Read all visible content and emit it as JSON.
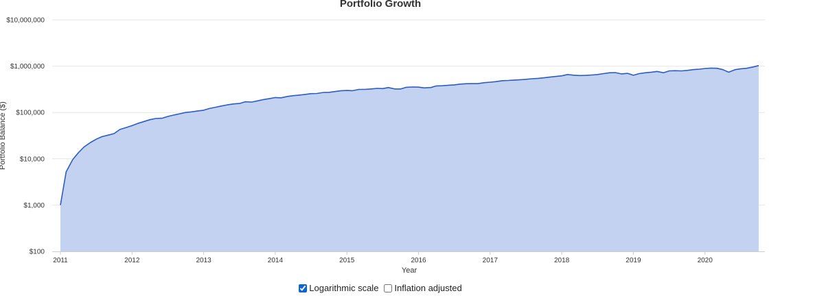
{
  "chart_data": {
    "type": "area",
    "title": "Portfolio Growth",
    "xlabel": "Year",
    "ylabel": "Portfolio Balance ($)",
    "y_scale": "log",
    "ylim": [
      100,
      10000000
    ],
    "xlim": [
      2011.0,
      2020.75
    ],
    "y_ticks": [
      {
        "value": 100,
        "label": "$100"
      },
      {
        "value": 1000,
        "label": "$1,000"
      },
      {
        "value": 10000,
        "label": "$10,000"
      },
      {
        "value": 100000,
        "label": "$100,000"
      },
      {
        "value": 1000000,
        "label": "$1,000,000"
      },
      {
        "value": 10000000,
        "label": "$10,000,000"
      }
    ],
    "x_ticks": [
      {
        "value": 2011,
        "label": "2011"
      },
      {
        "value": 2012,
        "label": "2012"
      },
      {
        "value": 2013,
        "label": "2013"
      },
      {
        "value": 2014,
        "label": "2014"
      },
      {
        "value": 2015,
        "label": "2015"
      },
      {
        "value": 2016,
        "label": "2016"
      },
      {
        "value": 2017,
        "label": "2017"
      },
      {
        "value": 2018,
        "label": "2018"
      },
      {
        "value": 2019,
        "label": "2019"
      },
      {
        "value": 2020,
        "label": "2020"
      }
    ],
    "grid": true,
    "legend": "none",
    "line_color": "#2a5cc4",
    "fill_color": "#c2d2f0",
    "series": [
      {
        "x": [
          2011.0,
          2011.08,
          2011.17,
          2011.25,
          2011.33,
          2011.42,
          2011.5,
          2011.58,
          2011.67,
          2011.75,
          2011.83,
          2011.92,
          2012.0,
          2012.08,
          2012.17,
          2012.25,
          2012.33,
          2012.42,
          2012.5,
          2012.58,
          2012.67,
          2012.75,
          2012.83,
          2012.92,
          2013.0,
          2013.08,
          2013.17,
          2013.25,
          2013.33,
          2013.42,
          2013.5,
          2013.58,
          2013.67,
          2013.75,
          2013.83,
          2013.92,
          2014.0,
          2014.08,
          2014.17,
          2014.25,
          2014.33,
          2014.42,
          2014.5,
          2014.58,
          2014.67,
          2014.75,
          2014.83,
          2014.92,
          2015.0,
          2015.08,
          2015.17,
          2015.25,
          2015.33,
          2015.42,
          2015.5,
          2015.58,
          2015.67,
          2015.75,
          2015.83,
          2015.92,
          2016.0,
          2016.08,
          2016.17,
          2016.25,
          2016.33,
          2016.42,
          2016.5,
          2016.58,
          2016.67,
          2016.75,
          2016.83,
          2016.92,
          2017.0,
          2017.08,
          2017.17,
          2017.25,
          2017.33,
          2017.42,
          2017.5,
          2017.58,
          2017.67,
          2017.75,
          2017.83,
          2017.92,
          2018.0,
          2018.08,
          2018.17,
          2018.25,
          2018.33,
          2018.42,
          2018.5,
          2018.58,
          2018.67,
          2018.75,
          2018.83,
          2018.92,
          2019.0,
          2019.08,
          2019.17,
          2019.25,
          2019.33,
          2019.42,
          2019.5,
          2019.58,
          2019.67,
          2019.75,
          2019.83,
          2019.92,
          2020.0,
          2020.08,
          2020.17,
          2020.25,
          2020.33,
          2020.42,
          2020.5,
          2020.58,
          2020.67,
          2020.75
        ],
        "values": [
          1000,
          5200,
          9500,
          13500,
          18000,
          22500,
          26500,
          30000,
          32500,
          35000,
          43000,
          47500,
          52000,
          58000,
          64000,
          70000,
          74000,
          75000,
          82000,
          88000,
          94000,
          100000,
          103000,
          108000,
          112000,
          122000,
          130000,
          138000,
          146000,
          153000,
          156000,
          170000,
          168000,
          178000,
          190000,
          200000,
          210000,
          207000,
          222000,
          230000,
          237000,
          246000,
          255000,
          257000,
          270000,
          272000,
          283000,
          295000,
          298000,
          295000,
          315000,
          315000,
          322000,
          332000,
          328000,
          345000,
          322000,
          322000,
          350000,
          355000,
          353000,
          340000,
          345000,
          375000,
          378000,
          388000,
          395000,
          410000,
          418000,
          420000,
          420000,
          440000,
          450000,
          463000,
          485000,
          490000,
          500000,
          510000,
          520000,
          535000,
          545000,
          560000,
          580000,
          600000,
          618000,
          660000,
          638000,
          628000,
          632000,
          645000,
          660000,
          690000,
          720000,
          725000,
          680000,
          700000,
          635000,
          690000,
          720000,
          740000,
          770000,
          720000,
          790000,
          800000,
          790000,
          810000,
          840000,
          860000,
          890000,
          910000,
          900000,
          840000,
          740000,
          840000,
          880000,
          900000,
          960000,
          1030000
        ]
      }
    ]
  },
  "controls": {
    "log_label": "Logarithmic scale",
    "log_checked": true,
    "inflation_label": "Inflation adjusted",
    "inflation_checked": false
  }
}
